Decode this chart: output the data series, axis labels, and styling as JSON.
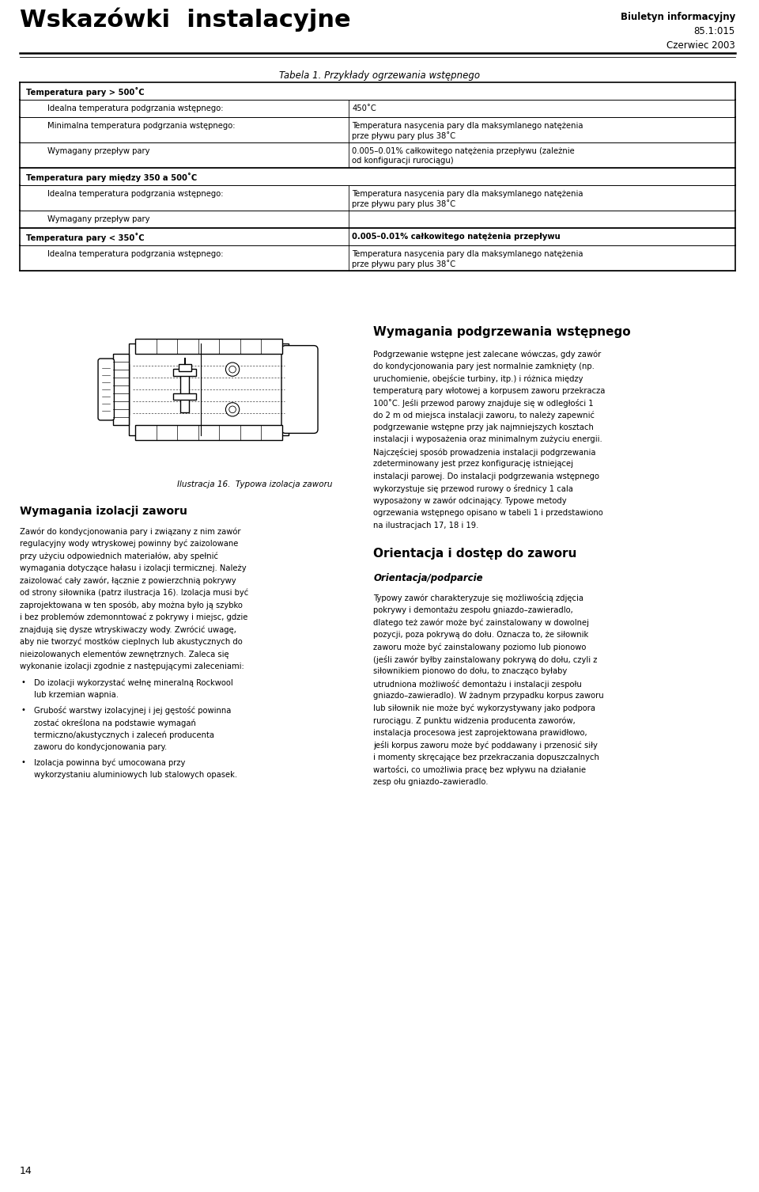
{
  "bg_color": "#ffffff",
  "page_width": 9.6,
  "page_height": 15.06,
  "header": {
    "right_top": "Biuletyn informacyjny",
    "right_mid": "85.1:015",
    "right_bot": "Czerwiec 2003",
    "left_title": "Wskazówki  instalacyjne"
  },
  "table_title": "Tabela 1. Przykłady ogrzewania wstępnego",
  "table_rows": [
    {
      "type": "section",
      "col1": "Temperatura pary > 500˚C",
      "col2": ""
    },
    {
      "type": "data",
      "col1": "Idealna temperatura podgrzania wstępnego:",
      "col2": "450˚C"
    },
    {
      "type": "data",
      "col1": "Minimalna temperatura podgrzania wstępnego:",
      "col2": "Temperatura nasycenia pary dla maksymlanego natężenia\nprze pływu pary plus 38˚C"
    },
    {
      "type": "data",
      "col1": "Wymagany przepływ pary",
      "col2": "0.005–0.01% całkowitego natężenia przepływu (zależnie\nod konfiguracji rurociągu)"
    },
    {
      "type": "section",
      "col1": "Temperatura pary między 350 a 500˚C",
      "col2": ""
    },
    {
      "type": "data",
      "col1": "Idealna temperatura podgrzania wstępnego:",
      "col2": "Temperatura nasycenia pary dla maksymlanego natężenia\nprze pływu pary plus 38˚C"
    },
    {
      "type": "data",
      "col1": "Wymagany przepływ pary",
      "col2": ""
    },
    {
      "type": "section",
      "col1": "Temperatura pary < 350˚C",
      "col2": "0.005–0.01% całkowitego natężenia przepływu"
    },
    {
      "type": "data",
      "col1": "Idealna temperatura podgrzania wstępnego:",
      "col2": "Temperatura nasycenia pary dla maksymlanego natężenia\nprze pływu pary plus 38˚C"
    }
  ],
  "illustration_caption": "Ilustracja 16.  Typowa izolacja zaworu",
  "left_section1_title": "Wymagania izolacji zaworu",
  "left_section1_body": [
    "Zawór do kondycjonowania pary i związany z nim zawór",
    "regulacyjny wody wtryskowej powinny być zaizolowane",
    "przy użyciu odpowiednich materiałów, aby spełnić",
    "wymagania dotyczące hałasu i izolacji termicznej. Należy",
    "zaizolować cały zawór, łącznie z powierzchnią pokrywy",
    "od strony siłownika (patrz ilustracja 16). Izolacja musi być",
    "zaprojektowana w ten sposób, aby można było ją szybko",
    "i bez problemów zdemonntować z pokrywy i miejsc, gdzie",
    "znajdują się dysze wtryskiwaczy wody. Zwrócić uwagę,",
    "aby nie tworzyć mostków cieplnych lub akustycznych do",
    "nieizolowanych elementów zewnętrznych. Zaleca się",
    "wykonanie izolacji zgodnie z następującymi zaleceniami:"
  ],
  "left_bullets": [
    [
      "Do izolacji wykorzystać wełnę mineralną Rockwool",
      "lub krzemian wapnia."
    ],
    [
      "Grubość warstwy izolacyjnej i jej gęstość powinna",
      "zostać określona na podstawie wymagań",
      "termiczno/akustycznych i zaleceń producenta",
      "zaworu do kondycjonowania pary."
    ],
    [
      "Izolacja powinna być umocowana przy",
      "wykorzystaniu aluminiowych lub stalowych opasek."
    ]
  ],
  "right_section1_title": "Wymagania podgrzewania wstępnego",
  "right_section1_body": [
    "Podgrzewanie wstępne jest zalecane wówczas, gdy zawór",
    "do kondycjonowania pary jest normalnie zamknięty (np.",
    "uruchomienie, obejście turbiny, itp.) i różnica między",
    "temperaturą pary włotowej a korpusem zaworu przekracza",
    "100˚C. Jeśli przewod parowy znajduje się w odległości 1",
    "do 2 m od miejsca instalacji zaworu, to należy zapewnić",
    "podgrzewanie wstępne przy jak najmniejszych kosztach",
    "instalacji i wyposażenia oraz minimalnym zużyciu energii.",
    "Najczęściej sposób prowadzenia instalacji podgrzewania",
    "zdeterminowany jest przez konfigurację istniejącej",
    "instalacji parowej. Do instalacji podgrzewania wstępnego",
    "wykorzystuje się przewod rurowy o średnicy 1 cala",
    "wyposażony w zawór odcinający. Typowe metody",
    "ogrzewania wstępnego opisano w tabeli 1 i przedstawiono",
    "na ilustracjach 17, 18 i 19."
  ],
  "right_section2_title": "Orientacja i dostęp do zaworu",
  "right_section2_subtitle": "Orientacja/podparcie",
  "right_section2_body": [
    "Typowy zawór charakteryzuje się możliwością zdjęcia",
    "pokrywy i demontażu zespołu gniazdo–zawieradlo,",
    "dlatego też zawór może być zainstalowany w dowolnej",
    "pozycji, poza pokrywą do dołu. Oznacza to, że siłownik",
    "zaworu może być zainstalowany poziomo lub pionowo",
    "(jeśli zawór byłby zainstalowany pokrywą do dołu, czyli z",
    "siłownikiem pionowo do dołu, to znacząco byłaby",
    "utrudniona możliwość demontażu i instalacji zespołu",
    "gniazdo–zawieradlo). W żadnym przypadku korpus zaworu",
    "lub siłownik nie może być wykorzystywany jako podpora",
    "rurociągu. Z punktu widzenia producenta zaworów,",
    "instalacja procesowa jest zaprojektowana prawidłowo,",
    "jeśli korpus zaworu może być poddawany i przenosić siły",
    "i momenty skręcające bez przekraczania dopuszczalnych",
    "wartości, co umożliwia pracę bez wpływu na działanie",
    "zesp ołu gniazdo–zawieradlo."
  ],
  "page_number": "14"
}
